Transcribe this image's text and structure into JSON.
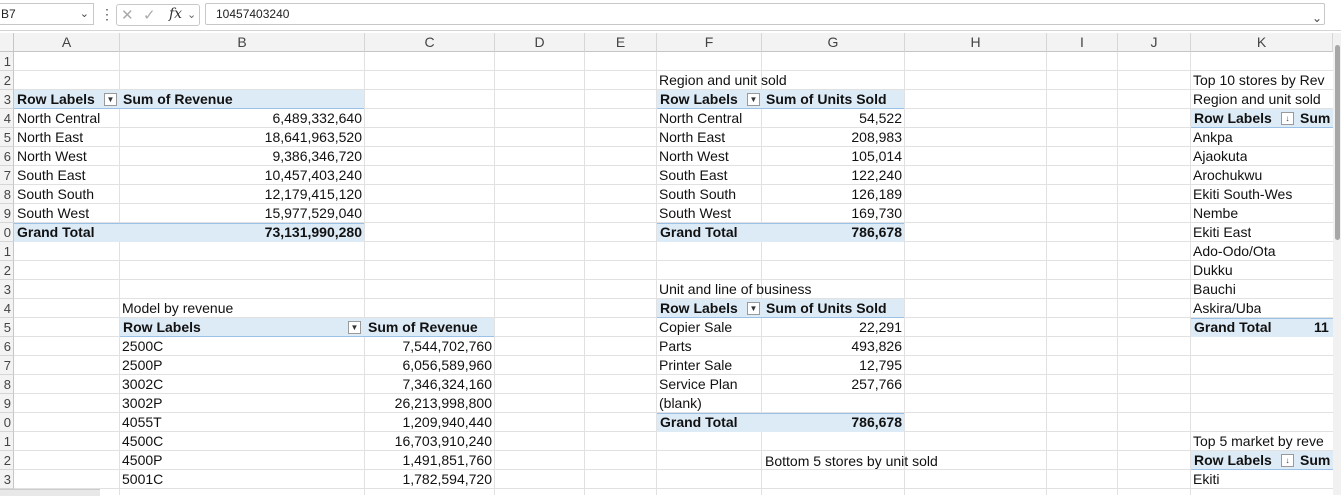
{
  "formula_bar": {
    "name_box": "B7",
    "formula": "10457403240",
    "fx": "fx"
  },
  "columns": [
    "A",
    "B",
    "C",
    "D",
    "E",
    "F",
    "G",
    "H",
    "I",
    "J",
    "K"
  ],
  "rows": [
    "1",
    "2",
    "3",
    "4",
    "5",
    "6",
    "7",
    "8",
    "9",
    "0",
    "1",
    "2",
    "3",
    "4",
    "5",
    "6",
    "7",
    "8",
    "9",
    "0",
    "1",
    "2",
    "3"
  ],
  "pivot_region_revenue": {
    "header_label": "Row Labels",
    "header_value": "Sum of Revenue",
    "rows": [
      {
        "label": "North Central",
        "value": "6,489,332,640"
      },
      {
        "label": "North East",
        "value": "18,641,963,520"
      },
      {
        "label": "North West",
        "value": "9,386,346,720"
      },
      {
        "label": "South East",
        "value": "10,457,403,240"
      },
      {
        "label": "South South",
        "value": "12,179,415,120"
      },
      {
        "label": "South West",
        "value": "15,977,529,040"
      }
    ],
    "total_label": "Grand Total",
    "total_value": "73,131,990,280"
  },
  "pivot_model_revenue": {
    "title": "Model  by revenue",
    "header_label": "Row Labels",
    "header_value": "Sum of Revenue",
    "rows": [
      {
        "label": "2500C",
        "value": "7,544,702,760"
      },
      {
        "label": "2500P",
        "value": "6,056,589,960"
      },
      {
        "label": "3002C",
        "value": "7,346,324,160"
      },
      {
        "label": "3002P",
        "value": "26,213,998,800"
      },
      {
        "label": "4055T",
        "value": "1,209,940,440"
      },
      {
        "label": "4500C",
        "value": "16,703,910,240"
      },
      {
        "label": "4500P",
        "value": "1,491,851,760"
      },
      {
        "label": "5001C",
        "value": "1,782,594,720"
      }
    ]
  },
  "pivot_region_units": {
    "title": "Region and unit sold",
    "header_label": "Row Labels",
    "header_value": "Sum of Units Sold",
    "rows": [
      {
        "label": "North Central",
        "value": "54,522"
      },
      {
        "label": "North East",
        "value": "208,983"
      },
      {
        "label": "North West",
        "value": "105,014"
      },
      {
        "label": "South East",
        "value": "122,240"
      },
      {
        "label": "South South",
        "value": "126,189"
      },
      {
        "label": "South West",
        "value": "169,730"
      }
    ],
    "total_label": "Grand Total",
    "total_value": "786,678"
  },
  "pivot_line_units": {
    "title": "Unit and line of business",
    "header_label": "Row Labels",
    "header_value": "Sum of Units Sold",
    "rows": [
      {
        "label": "Copier Sale",
        "value": "22,291"
      },
      {
        "label": "Parts",
        "value": "493,826"
      },
      {
        "label": "Printer Sale",
        "value": "12,795"
      },
      {
        "label": "Service Plan",
        "value": "257,766"
      },
      {
        "label": "(blank)",
        "value": ""
      }
    ],
    "total_label": "Grand Total",
    "total_value": "786,678"
  },
  "bottom5_title": "Bottom 5 stores by unit sold",
  "pivot_top10": {
    "title1": "Top 10 stores by Rev",
    "title2": "Region and unit sold",
    "header_label": "Row Labels",
    "header_value": "Sum",
    "rows": [
      "Ankpa",
      "Ajaokuta",
      "Arochukwu",
      "Ekiti South-Wes",
      "Nembe",
      "Ekiti East",
      "Ado-Odo/Ota",
      "Dukku",
      "Bauchi",
      "Askira/Uba"
    ],
    "total_label": "Grand Total",
    "total_value": "11"
  },
  "pivot_top5": {
    "title": "Top 5 market by reve",
    "header_label": "Row Labels",
    "header_value": "Sum",
    "rows": [
      "Ekiti"
    ]
  }
}
